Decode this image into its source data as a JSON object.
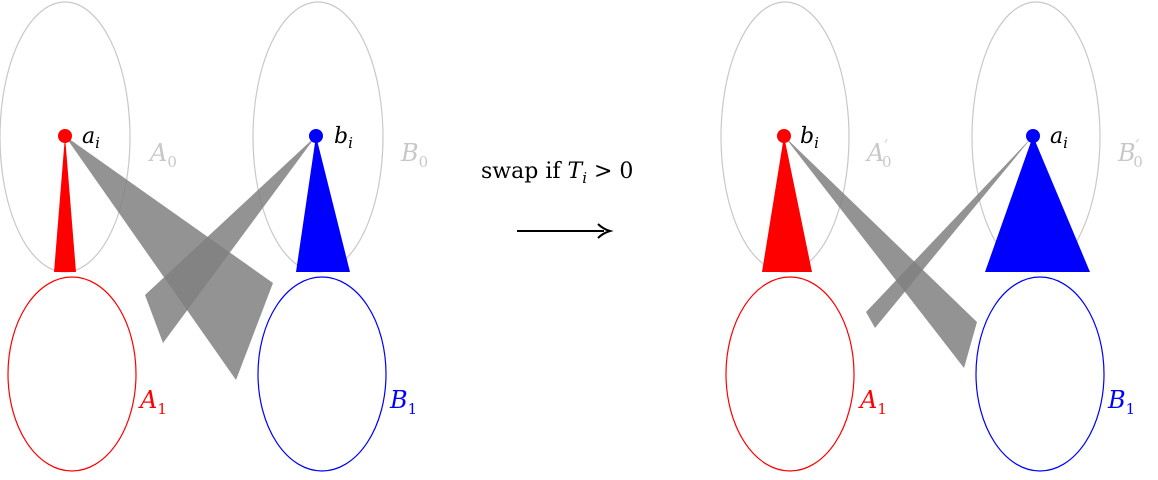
{
  "colors": {
    "gray_outline": "#c8c8c8",
    "red": "#ff0000",
    "blue": "#0000ff",
    "cone_gray": "#808080",
    "text": "#000000"
  },
  "left": {
    "top_left_set": {
      "base": "A",
      "sub": "0"
    },
    "top_right_set": {
      "base": "B",
      "sub": "0"
    },
    "bottom_left_set": {
      "base": "A",
      "sub": "1"
    },
    "bottom_right_set": {
      "base": "B",
      "sub": "1"
    },
    "red_point": {
      "base": "a",
      "sub": "i"
    },
    "blue_point": {
      "base": "b",
      "sub": "i"
    }
  },
  "transition": {
    "text_before": "swap if ",
    "var_base": "T",
    "var_sub": "i",
    "text_after": " > 0",
    "arrow_icon": "right-arrow-icon"
  },
  "right": {
    "top_left_set": {
      "base": "A",
      "prime": "′",
      "sub": "0"
    },
    "top_right_set": {
      "base": "B",
      "prime": "′",
      "sub": "0"
    },
    "bottom_left_set": {
      "base": "A",
      "sub": "1"
    },
    "bottom_right_set": {
      "base": "B",
      "sub": "1"
    },
    "red_point": {
      "base": "b",
      "sub": "i"
    },
    "blue_point": {
      "base": "a",
      "sub": "i"
    }
  }
}
